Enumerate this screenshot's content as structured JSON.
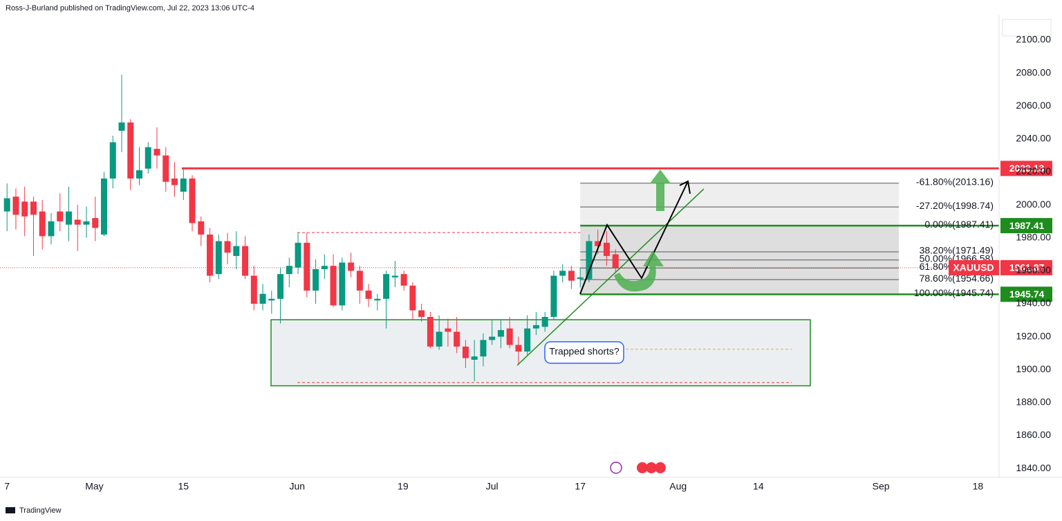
{
  "header": "Ross-J-Burland published on TradingView.com, Jul 22, 2023 13:06 UTC-4",
  "footer": "TradingView",
  "chart_data": {
    "type": "candlestick",
    "symbol": "XAUUSD",
    "up_color": "#089981",
    "down_color": "#f23645",
    "x": [
      0,
      1,
      2,
      3,
      4,
      5,
      6,
      7,
      8,
      9,
      10,
      11,
      12,
      13,
      14,
      15,
      16,
      17,
      18,
      19,
      20,
      21,
      22,
      23,
      24,
      25,
      26,
      27,
      28,
      29,
      30,
      31,
      32,
      33,
      34,
      35,
      36,
      37,
      38,
      39,
      40,
      41,
      42,
      43,
      44,
      45,
      46,
      47,
      48,
      49,
      50,
      51,
      52,
      53,
      54,
      55,
      56,
      57,
      58,
      59,
      60,
      61,
      62,
      63,
      64,
      65,
      66,
      67,
      68,
      69
    ],
    "open": [
      1996,
      2005,
      2002,
      2002,
      1996,
      1981,
      1996,
      1988,
      1991,
      1988,
      1992,
      1982,
      2016,
      2045,
      2050,
      2016,
      2022,
      2034,
      2030,
      2016,
      2008,
      2016,
      1990,
      1982,
      1958,
      1978,
      1969,
      1975,
      1957,
      1940,
      1942,
      1943,
      1958,
      1962,
      1977,
      1948,
      1961,
      1963,
      1939,
      1965,
      1960,
      1948,
      1942,
      1943,
      1956,
      1958,
      1951,
      1936,
      1932,
      1914,
      1925,
      1923,
      1914,
      1906,
      1908,
      1918,
      1920,
      1925,
      1915,
      1911,
      1925,
      1926,
      1932,
      1957,
      1960,
      1955,
      1955,
      1978,
      1977,
      1970
    ],
    "high": [
      2013,
      2010,
      2011,
      2005,
      2003,
      1995,
      2007,
      2011,
      2000,
      1999,
      2005,
      2020,
      2042,
      2079,
      2052,
      2035,
      2038,
      2047,
      2035,
      2026,
      2022,
      2018,
      1993,
      1986,
      1982,
      1983,
      1984,
      1981,
      1963,
      1952,
      1948,
      1962,
      1968,
      1983,
      1983,
      1967,
      1970,
      1970,
      1968,
      1971,
      1963,
      1952,
      1946,
      1960,
      1966,
      1960,
      1953,
      1940,
      1935,
      1933,
      1931,
      1932,
      1918,
      1918,
      1922,
      1930,
      1930,
      1932,
      1920,
      1933,
      1935,
      1935,
      1960,
      1964,
      1963,
      1962,
      1982,
      1985,
      1984,
      1973
    ],
    "low": [
      1984,
      1985,
      1981,
      1969,
      1973,
      1976,
      1984,
      1978,
      1972,
      1980,
      1978,
      1981,
      2010,
      2032,
      2009,
      2012,
      2019,
      2022,
      2008,
      2005,
      2003,
      1984,
      1975,
      1953,
      1955,
      1964,
      1961,
      1955,
      1936,
      1936,
      1934,
      1928,
      1950,
      1958,
      1944,
      1940,
      1955,
      1938,
      1936,
      1956,
      1940,
      1938,
      1936,
      1925,
      1950,
      1948,
      1930,
      1929,
      1913,
      1912,
      1914,
      1910,
      1901,
      1893,
      1902,
      1915,
      1913,
      1913,
      1903,
      1909,
      1921,
      1923,
      1930,
      1953,
      1949,
      1950,
      1953,
      1970,
      1963,
      1959
    ],
    "close": [
      2004,
      1994,
      1993,
      1994,
      1981,
      1990,
      1990,
      1996,
      1988,
      1990,
      1986,
      2016,
      2038,
      2050,
      2016,
      2021,
      2035,
      2030,
      2014,
      2012,
      2016,
      1989,
      1982,
      1957,
      1978,
      1971,
      1975,
      1957,
      1940,
      1946,
      1943,
      1958,
      1963,
      1977,
      1948,
      1961,
      1963,
      1939,
      1965,
      1960,
      1948,
      1943,
      1943,
      1958,
      1957,
      1951,
      1936,
      1932,
      1914,
      1923,
      1923,
      1914,
      1907,
      1908,
      1918,
      1920,
      1924,
      1915,
      1911,
      1925,
      1927,
      1932,
      1957,
      1960,
      1954,
      1956,
      1978,
      1975,
      1969,
      1961.87
    ],
    "xlim": [
      -0.8,
      112.5
    ],
    "xticks": [
      {
        "value": 0,
        "label": "7"
      },
      {
        "value": 9.9,
        "label": "May"
      },
      {
        "value": 20,
        "label": "15"
      },
      {
        "value": 32.9,
        "label": "Jun"
      },
      {
        "value": 44.9,
        "label": "19"
      },
      {
        "value": 55,
        "label": "Jul"
      },
      {
        "value": 65,
        "label": "17"
      },
      {
        "value": 76.1,
        "label": "Aug"
      },
      {
        "value": 85.2,
        "label": "14"
      },
      {
        "value": 99.1,
        "label": "Sep"
      },
      {
        "value": 110.1,
        "label": "18"
      }
    ],
    "ylim": [
      1834.6,
      2115.1
    ],
    "yticks": [
      {
        "value": 1840,
        "label": "1840.00"
      },
      {
        "value": 1860,
        "label": "1860.00"
      },
      {
        "value": 1880,
        "label": "1880.00"
      },
      {
        "value": 1900,
        "label": "1900.00"
      },
      {
        "value": 1920,
        "label": "1920.00"
      },
      {
        "value": 1940,
        "label": "1940.00"
      },
      {
        "value": 1960,
        "label": "1960.00"
      },
      {
        "value": 1980,
        "label": "1980.00"
      },
      {
        "value": 2000,
        "label": "2000.00"
      },
      {
        "value": 2020,
        "label": "2020.00"
      },
      {
        "value": 2040,
        "label": "2040.00"
      },
      {
        "value": 2060,
        "label": "2060.00"
      },
      {
        "value": 2080,
        "label": "2080.00"
      },
      {
        "value": 2100,
        "label": "2100.00"
      }
    ],
    "resistance": 2022.13,
    "fib_levels": [
      {
        "value": 2013.16,
        "label": "-61.80%(2013.16)"
      },
      {
        "value": 1998.74,
        "label": "-27.20%(1998.74)"
      },
      {
        "value": 1987.41,
        "label": "0.00%(1987.41)"
      },
      {
        "value": 1971.49,
        "label": "38.20%(1971.49)"
      },
      {
        "value": 1966.58,
        "label": "50.00%(1966.58)"
      },
      {
        "value": 1961.66,
        "label": "61.80%(1961.66)"
      },
      {
        "value": 1954.66,
        "label": "78.60%(1954.66)"
      },
      {
        "value": 1945.74,
        "label": "100.00%(1945.74)"
      }
    ],
    "price_tags": [
      {
        "value": 2022.13,
        "color": "#f23645"
      },
      {
        "value": 1987.41,
        "color": "#1e8c1e"
      },
      {
        "value": 1945.74,
        "color": "#1e8c1e"
      }
    ],
    "zone": [
      1930.3,
      1890.2
    ],
    "dashed_levels": [
      1983.2,
      1912.4,
      1892.2
    ],
    "annotation": "Trapped shorts?"
  }
}
